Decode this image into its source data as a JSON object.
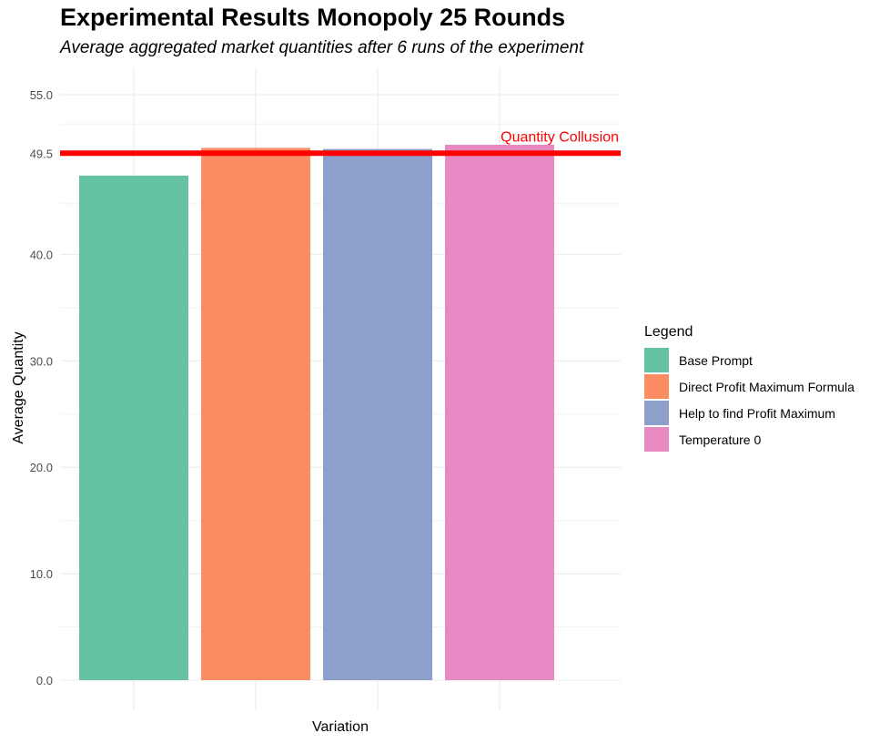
{
  "chart_data": {
    "type": "bar",
    "title": "Experimental Results Monopoly 25 Rounds",
    "subtitle": "Average aggregated market quantities after 6 runs of the experiment",
    "xlabel": "Variation",
    "ylabel": "Average Quantity",
    "ylim": [
      0,
      55
    ],
    "yticks": [
      {
        "value": 0,
        "label": "0.0"
      },
      {
        "value": 10,
        "label": "10.0"
      },
      {
        "value": 20,
        "label": "20.0"
      },
      {
        "value": 30,
        "label": "30.0"
      },
      {
        "value": 40,
        "label": "40.0"
      },
      {
        "value": 49.5,
        "label": "49.5"
      },
      {
        "value": 55,
        "label": "55.0"
      }
    ],
    "grid": true,
    "legend_title": "Legend",
    "legend_position": "right",
    "series": [
      {
        "name": "Base Prompt",
        "value": 47.4,
        "color": "#66c2a5"
      },
      {
        "name": "Direct Profit Maximum Formula",
        "value": 50.0,
        "color": "#fc8d62"
      },
      {
        "name": "Help to find Profit Maximum",
        "value": 49.9,
        "color": "#8da0cb"
      },
      {
        "name": "Temperature 0",
        "value": 50.3,
        "color": "#e78ac3"
      }
    ],
    "reference_line": {
      "value": 49.5,
      "label": "Quantity Collusion",
      "color": "#ff0000"
    }
  }
}
